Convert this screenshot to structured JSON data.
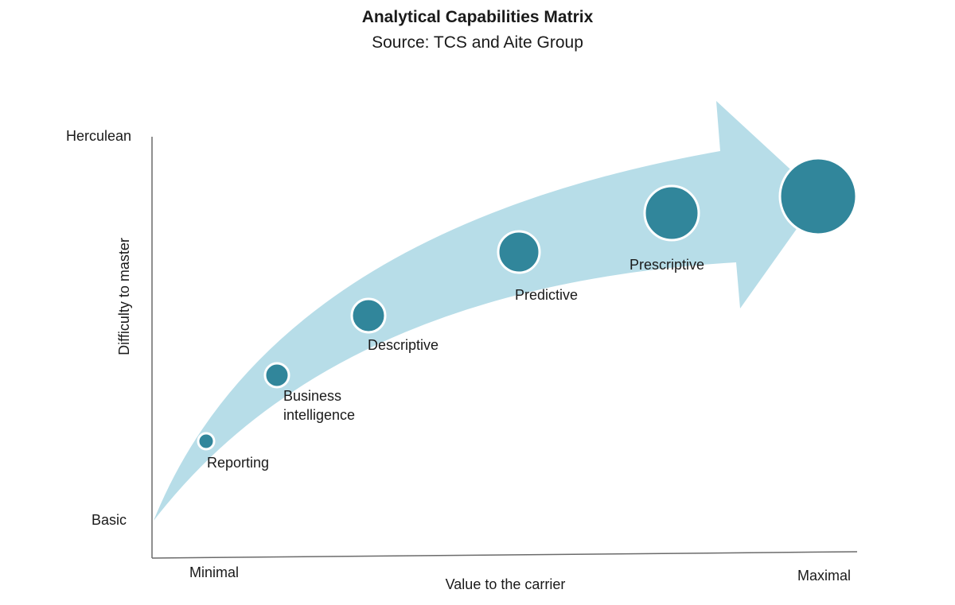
{
  "title": "Analytical Capabilities Matrix",
  "subtitle": "Source: TCS and Aite Group",
  "y_axis": {
    "label": "Difficulty to master",
    "top_label": "Herculean",
    "bottom_label": "Basic"
  },
  "x_axis": {
    "label": "Value to the carrier",
    "left_label": "Minimal",
    "right_label": "Maximal"
  },
  "stages": [
    {
      "label_lines": [
        "Reporting"
      ]
    },
    {
      "label_lines": [
        "Business",
        "intelligence"
      ]
    },
    {
      "label_lines": [
        "Descriptive"
      ]
    },
    {
      "label_lines": [
        "Predictive"
      ]
    },
    {
      "label_lines": [
        "Prescriptive"
      ]
    },
    {
      "label_lines": []
    }
  ],
  "colors": {
    "arrow_fill": "#b7dde8",
    "circle_fill": "#31869b",
    "circle_stroke": "#ffffff",
    "axis": "#6b6b6b"
  }
}
